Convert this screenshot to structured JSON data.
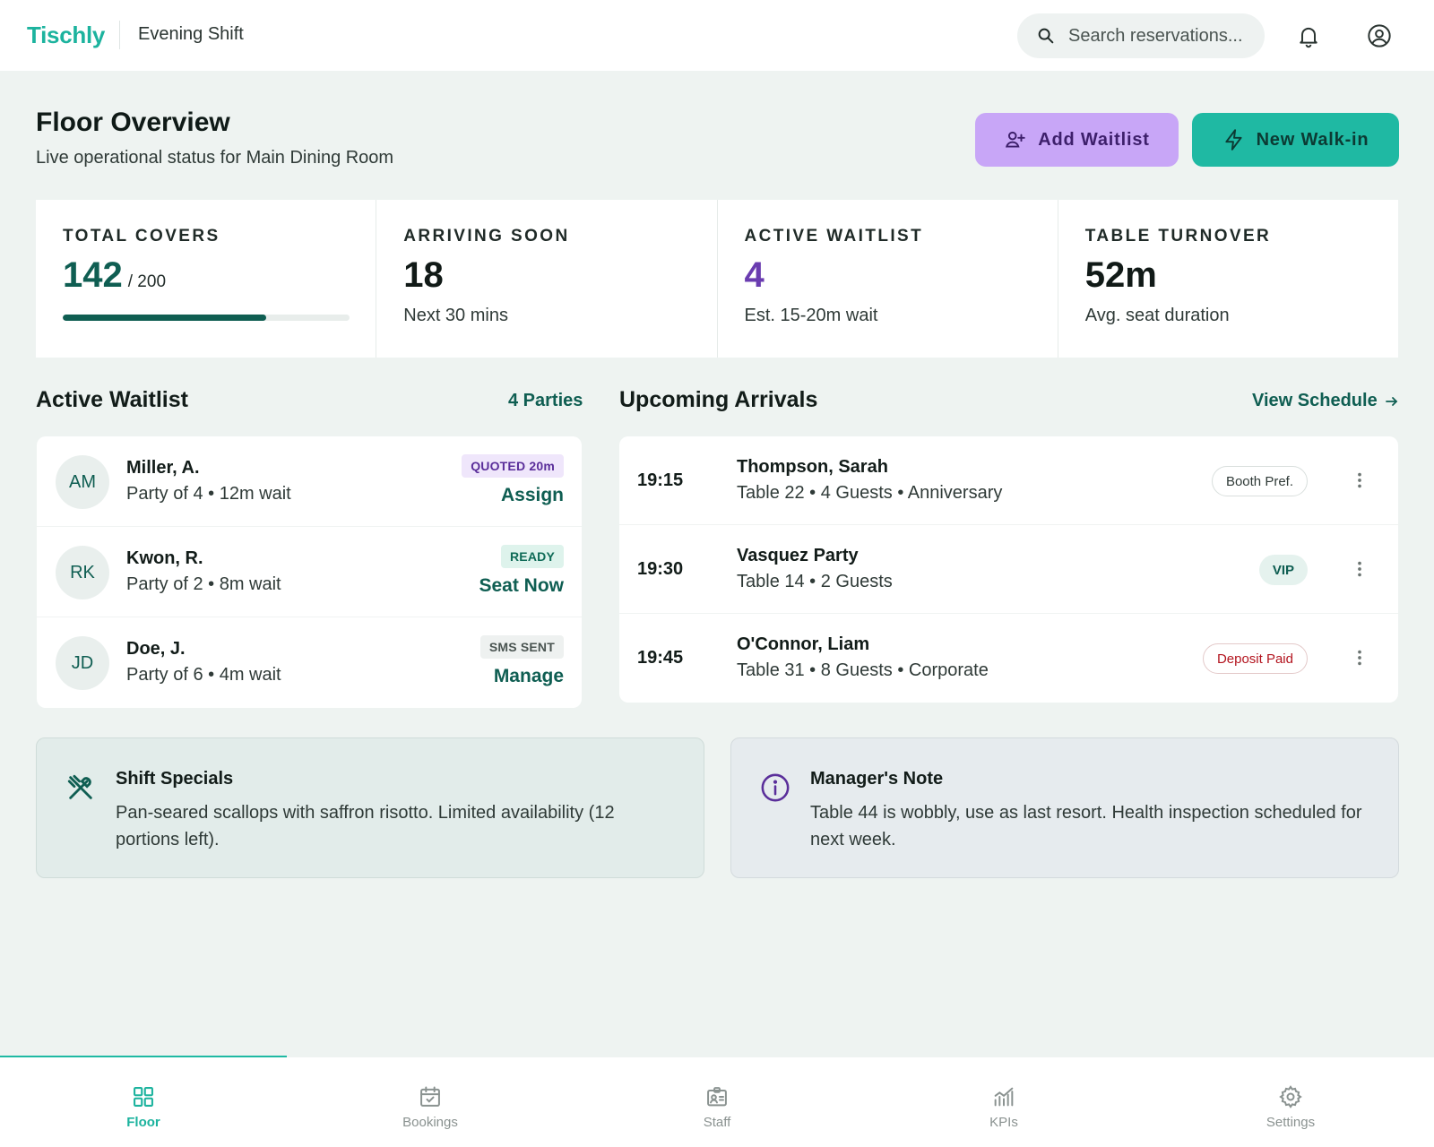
{
  "app": {
    "brand": "Tischly",
    "shift": "Evening Shift"
  },
  "search": {
    "placeholder": "Search reservations..."
  },
  "header": {
    "title": "Floor Overview",
    "subtitle": "Live operational status for Main Dining Room",
    "add_waitlist_label": "Add Waitlist",
    "new_walkin_label": "New Walk-in"
  },
  "stats": {
    "total_covers": {
      "label": "TOTAL COVERS",
      "value": "142",
      "capacity": "/ 200",
      "progress": 0.71
    },
    "arriving_soon": {
      "label": "ARRIVING SOON",
      "value": "18",
      "note": "Next 30 mins"
    },
    "active_waitlist": {
      "label": "ACTIVE WAITLIST",
      "value": "4",
      "note": "Est. 15-20m wait"
    },
    "table_turnover": {
      "label": "TABLE TURNOVER",
      "value": "52m",
      "note": "Avg. seat duration"
    }
  },
  "waitlist": {
    "title": "Active Waitlist",
    "count_label": "4 Parties",
    "items": [
      {
        "initials": "AM",
        "name": "Miller, A.",
        "meta": "Party of 4  •  12m wait",
        "badge": "QUOTED 20m",
        "action": "Assign"
      },
      {
        "initials": "RK",
        "name": "Kwon, R.",
        "meta": "Party of 2  •  8m wait",
        "badge": "READY",
        "action": "Seat Now"
      },
      {
        "initials": "JD",
        "name": "Doe, J.",
        "meta": "Party of 6  •  4m wait",
        "badge": "SMS SENT",
        "action": "Manage"
      }
    ]
  },
  "arrivals": {
    "title": "Upcoming Arrivals",
    "link_label": "View Schedule",
    "items": [
      {
        "time": "19:15",
        "name": "Thompson, Sarah",
        "meta": "Table 22  •  4 Guests  •  Anniversary",
        "tag": "Booth Pref."
      },
      {
        "time": "19:30",
        "name": "Vasquez Party",
        "meta": "Table 14  •  2 Guests",
        "tag": "VIP"
      },
      {
        "time": "19:45",
        "name": "O'Connor, Liam",
        "meta": "Table 31  •  8 Guests  •  Corporate",
        "tag": "Deposit Paid"
      }
    ]
  },
  "notes": {
    "specials": {
      "title": "Shift Specials",
      "body": "Pan-seared scallops with saffron risotto. Limited availability (12 portions left)."
    },
    "manager": {
      "title": "Manager's Note",
      "body": "Table 44 is wobbly, use as last resort. Health inspection scheduled for next week."
    }
  },
  "nav": {
    "active": "Floor",
    "items": [
      {
        "label": "Floor",
        "icon": "grid-icon"
      },
      {
        "label": "Bookings",
        "icon": "calendar-check-icon"
      },
      {
        "label": "Staff",
        "icon": "id-badge-icon"
      },
      {
        "label": "KPIs",
        "icon": "chart-icon"
      },
      {
        "label": "Settings",
        "icon": "gear-icon"
      }
    ]
  },
  "colors": {
    "brand": "#1cb39e",
    "primary_dark": "#0f5e52",
    "accent_purple": "#c8a6f7",
    "danger": "#b3141e"
  }
}
